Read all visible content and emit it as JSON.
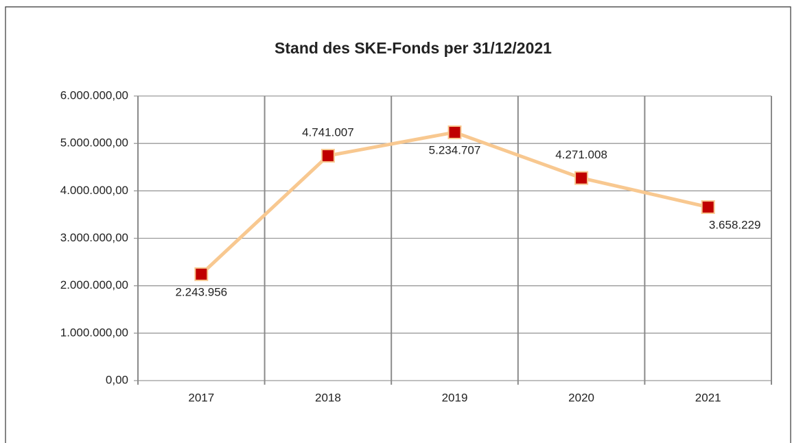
{
  "chart_data": {
    "type": "line",
    "title": "Stand des SKE-Fonds per 31/12/2021",
    "categories": [
      "2017",
      "2018",
      "2019",
      "2020",
      "2021"
    ],
    "series": [
      {
        "name": null,
        "color": "#f8c890",
        "marker_color": "#c00000",
        "values": [
          2243956,
          4741007,
          5234707,
          4271008,
          3658229
        ],
        "value_labels": [
          "2.243.956",
          "4.741.007",
          "5.234.707",
          "4.271.008",
          "3.658.229"
        ]
      }
    ],
    "ylim": [
      0,
      6000000
    ],
    "yticks": [
      {
        "value": 0,
        "label": "0,00"
      },
      {
        "value": 1000000,
        "label": "1.000.000,00"
      },
      {
        "value": 2000000,
        "label": "2.000.000,00"
      },
      {
        "value": 3000000,
        "label": "3.000.000,00"
      },
      {
        "value": 4000000,
        "label": "4.000.000,00"
      },
      {
        "value": 5000000,
        "label": "5.000.000,00"
      },
      {
        "value": 6000000,
        "label": "6.000.000,00"
      }
    ],
    "grid": true
  }
}
